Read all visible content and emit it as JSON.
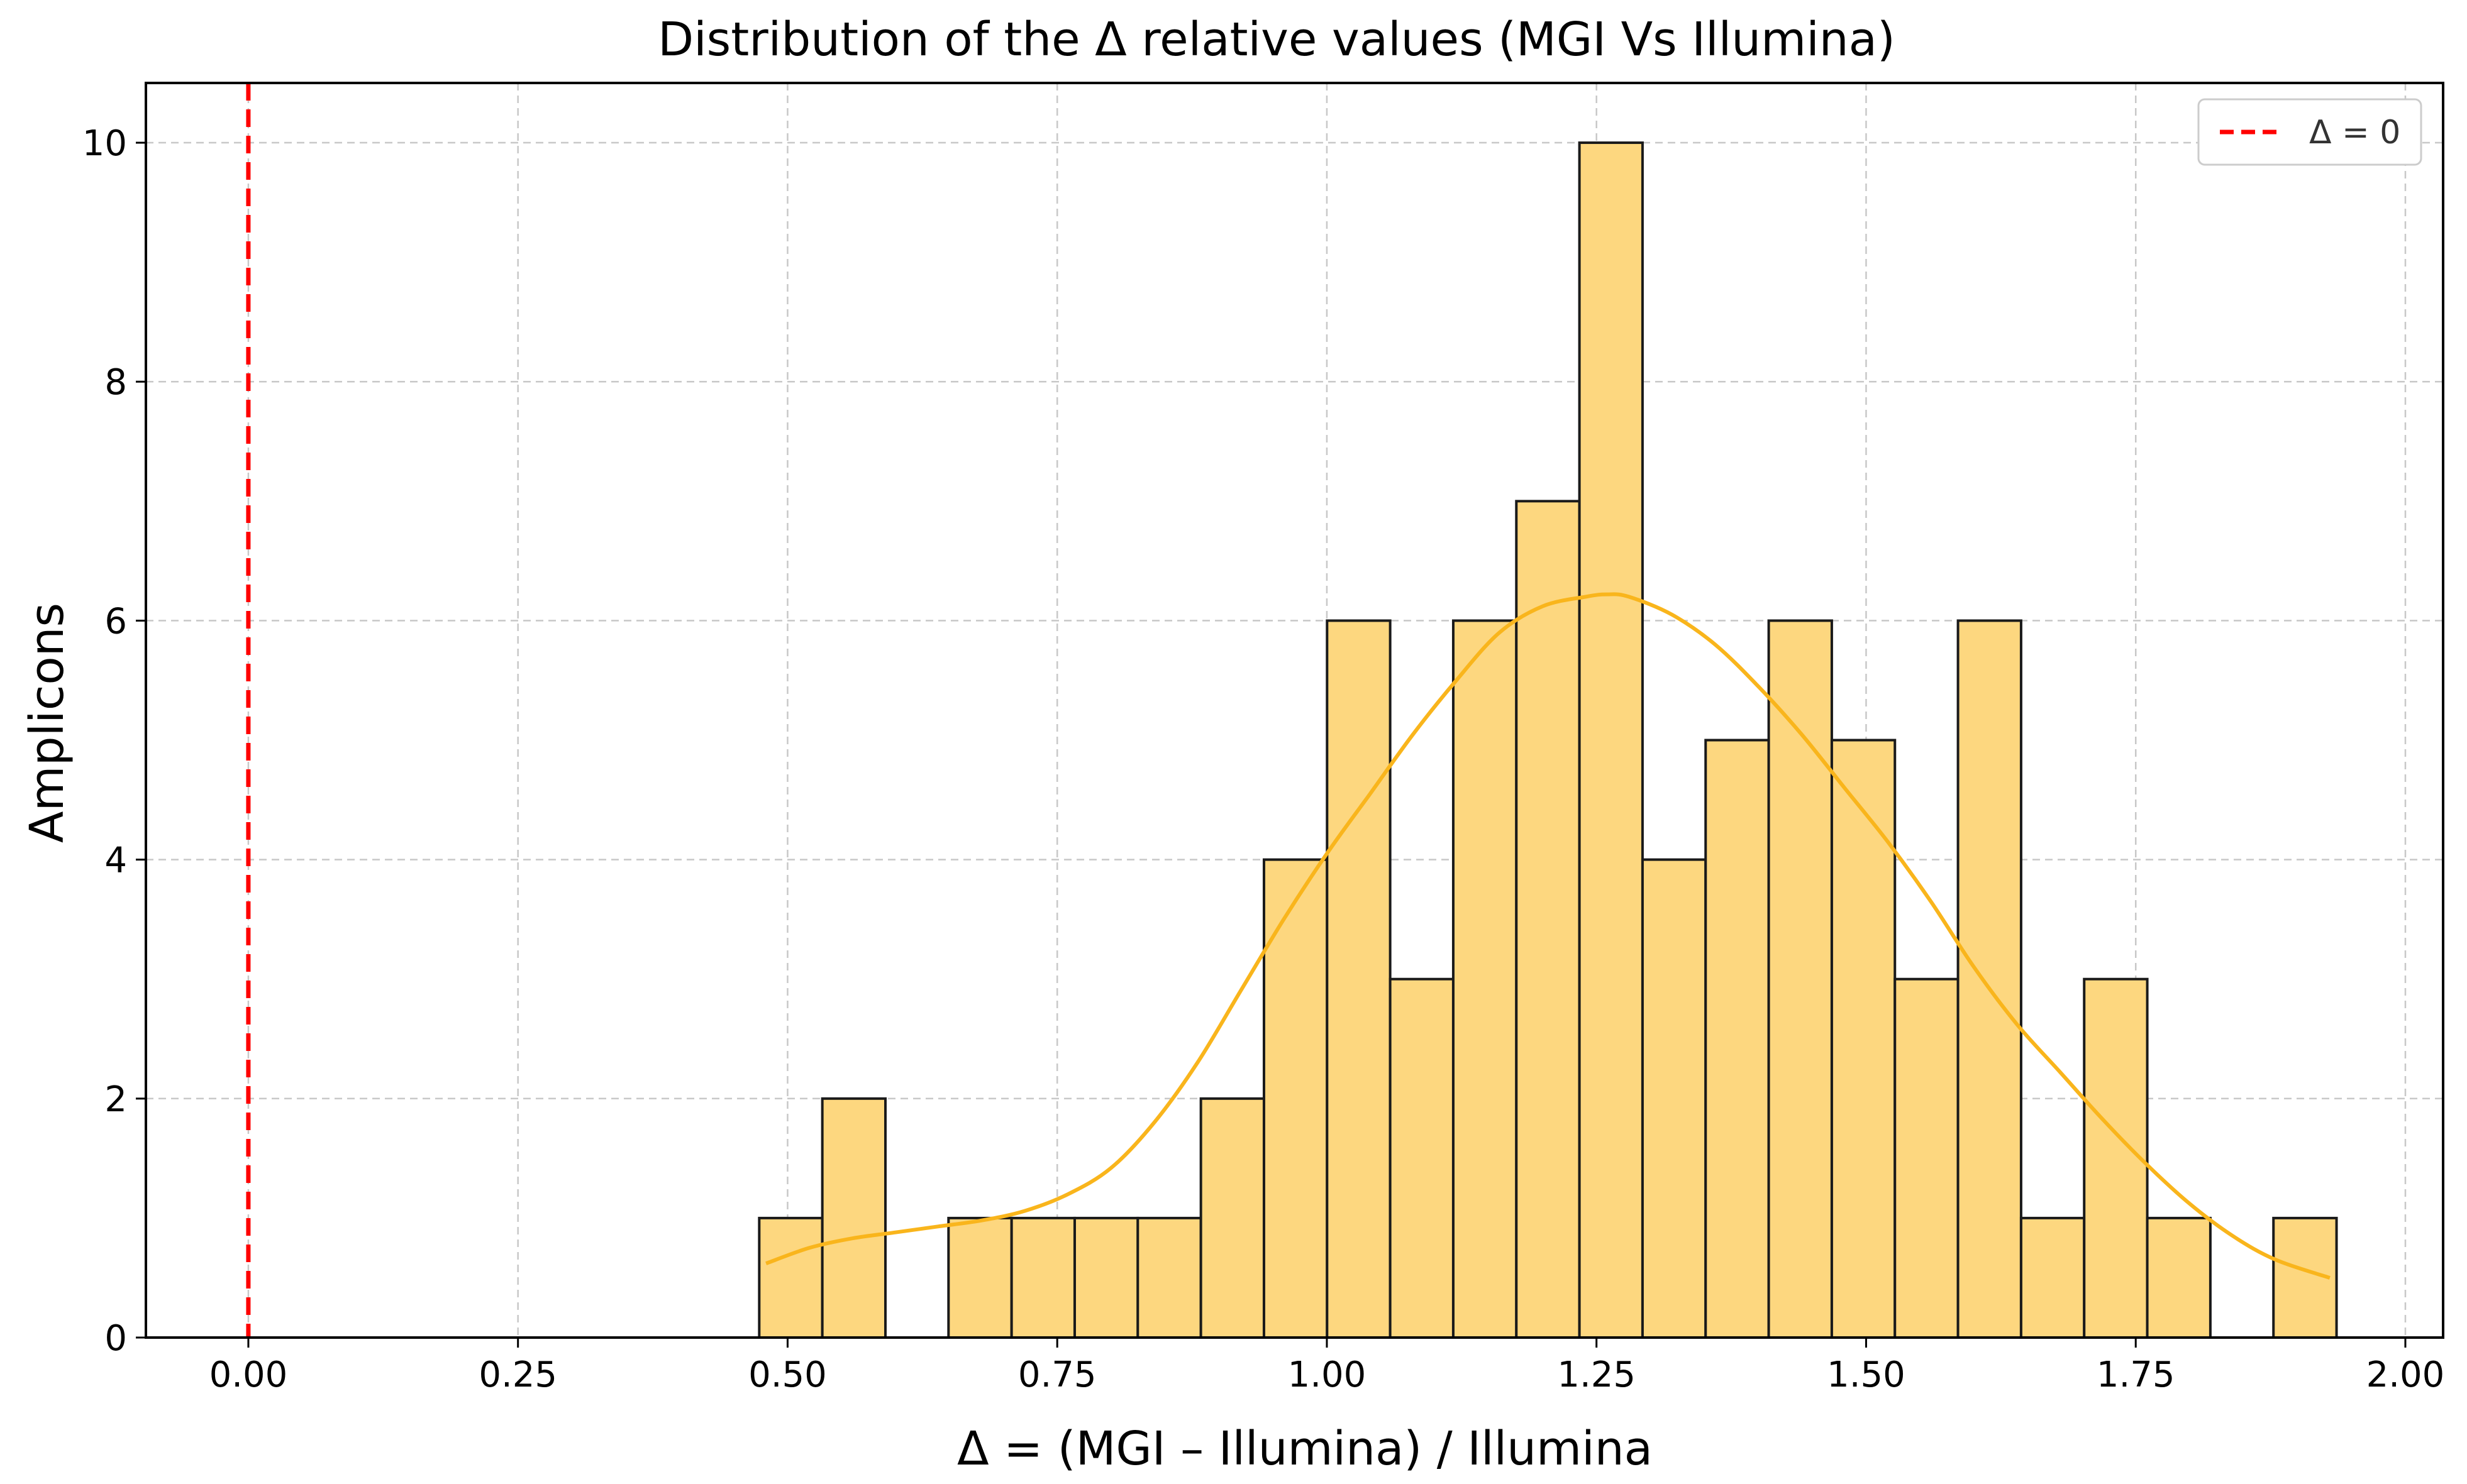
{
  "chart_data": {
    "type": "bar",
    "subtype": "histogram",
    "title": "Distribution of the Δ relative values (MGI Vs Illumina)",
    "xlabel": "Δ = (MGI – Illumina) / Illumina",
    "ylabel": "Amplicons",
    "xlim": [
      -0.095,
      2.035
    ],
    "ylim": [
      0,
      10.5
    ],
    "xticks": [
      0.0,
      0.25,
      0.5,
      0.75,
      1.0,
      1.25,
      1.5,
      1.75,
      2.0
    ],
    "xtick_labels": [
      "0.00",
      "0.25",
      "0.50",
      "0.75",
      "1.00",
      "1.25",
      "1.50",
      "1.75",
      "2.00"
    ],
    "yticks": [
      0,
      2,
      4,
      6,
      8,
      10
    ],
    "ytick_labels": [
      "0",
      "2",
      "4",
      "6",
      "8",
      "10"
    ],
    "grid": true,
    "bin_start": 0.4737,
    "bin_width": 0.0585,
    "counts": [
      1,
      2,
      0,
      1,
      1,
      1,
      1,
      2,
      4,
      6,
      3,
      6,
      7,
      10,
      4,
      5,
      6,
      5,
      3,
      6,
      1,
      3,
      1,
      0,
      1
    ],
    "bar_color": "#fdd77f",
    "bar_edge_color": "#1a1a1a",
    "kde": {
      "color": "#f9b51c",
      "x": [
        0.48,
        0.52,
        0.56,
        0.6,
        0.64,
        0.68,
        0.72,
        0.76,
        0.8,
        0.84,
        0.88,
        0.92,
        0.96,
        1.0,
        1.04,
        1.08,
        1.12,
        1.16,
        1.2,
        1.24,
        1.26,
        1.28,
        1.32,
        1.36,
        1.4,
        1.44,
        1.48,
        1.52,
        1.56,
        1.6,
        1.64,
        1.68,
        1.72,
        1.76,
        1.8,
        1.84,
        1.88,
        1.93
      ],
      "y": [
        0.62,
        0.75,
        0.83,
        0.88,
        0.93,
        0.98,
        1.06,
        1.2,
        1.42,
        1.8,
        2.3,
        2.9,
        3.5,
        4.05,
        4.55,
        5.05,
        5.5,
        5.9,
        6.12,
        6.2,
        6.22,
        6.2,
        6.05,
        5.8,
        5.45,
        5.05,
        4.6,
        4.15,
        3.65,
        3.1,
        2.62,
        2.22,
        1.82,
        1.45,
        1.12,
        0.85,
        0.65,
        0.5
      ]
    },
    "reference_line": {
      "x": 0.0,
      "color": "#ff0000",
      "style": "dashed",
      "label": "Δ = 0"
    },
    "legend": {
      "position": "top-right",
      "entries": [
        "Δ = 0"
      ]
    }
  }
}
